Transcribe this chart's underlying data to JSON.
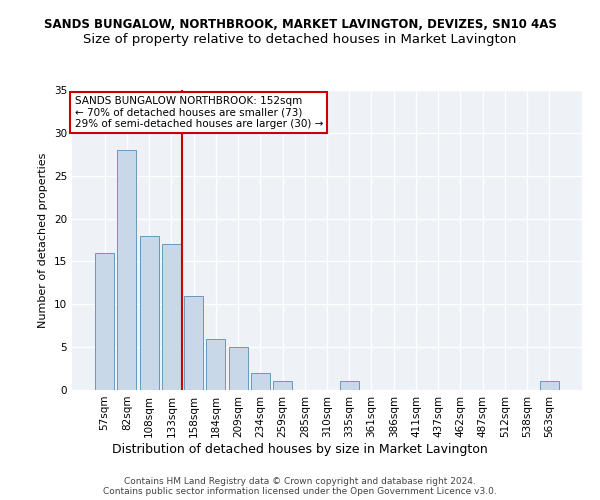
{
  "title1": "SANDS BUNGALOW, NORTHBROOK, MARKET LAVINGTON, DEVIZES, SN10 4AS",
  "title2": "Size of property relative to detached houses in Market Lavington",
  "xlabel": "Distribution of detached houses by size in Market Lavington",
  "ylabel": "Number of detached properties",
  "categories": [
    "57sqm",
    "82sqm",
    "108sqm",
    "133sqm",
    "158sqm",
    "184sqm",
    "209sqm",
    "234sqm",
    "259sqm",
    "285sqm",
    "310sqm",
    "335sqm",
    "361sqm",
    "386sqm",
    "411sqm",
    "437sqm",
    "462sqm",
    "487sqm",
    "512sqm",
    "538sqm",
    "563sqm"
  ],
  "values": [
    16,
    28,
    18,
    17,
    11,
    6,
    5,
    2,
    1,
    0,
    0,
    1,
    0,
    0,
    0,
    0,
    0,
    0,
    0,
    0,
    1
  ],
  "bar_color": "#c8d8e8",
  "bar_edge_color": "#6699bb",
  "vline_x": 3.5,
  "vline_color": "#cc0000",
  "annotation_text": "SANDS BUNGALOW NORTHBROOK: 152sqm\n← 70% of detached houses are smaller (73)\n29% of semi-detached houses are larger (30) →",
  "annotation_box_color": "#ffffff",
  "annotation_box_edge": "#cc0000",
  "ylim": [
    0,
    35
  ],
  "yticks": [
    0,
    5,
    10,
    15,
    20,
    25,
    30,
    35
  ],
  "background_color": "#eef2f7",
  "footer1": "Contains HM Land Registry data © Crown copyright and database right 2024.",
  "footer2": "Contains public sector information licensed under the Open Government Licence v3.0.",
  "title1_fontsize": 8.5,
  "title2_fontsize": 9.5,
  "xlabel_fontsize": 9,
  "ylabel_fontsize": 8,
  "tick_fontsize": 7.5,
  "annotation_fontsize": 7.5,
  "footer_fontsize": 6.5
}
